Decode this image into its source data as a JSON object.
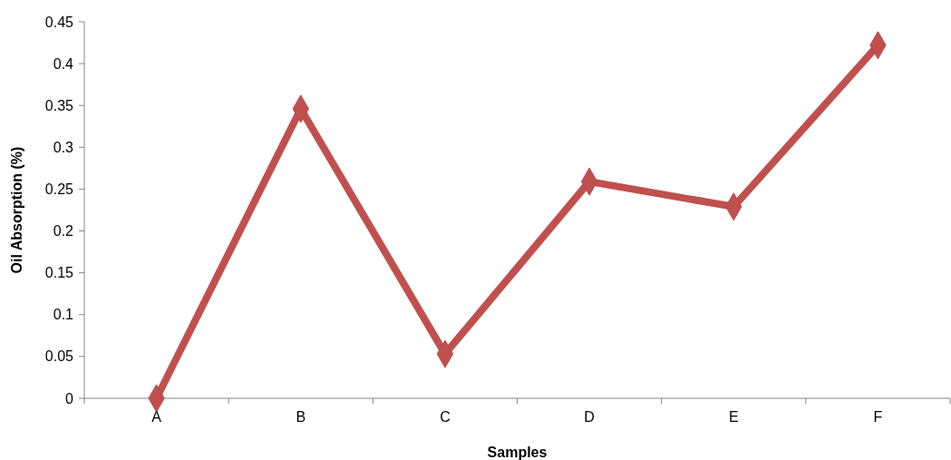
{
  "chart_data": {
    "type": "line",
    "xlabel": "Samples",
    "ylabel": "Oil Absorption (%)",
    "categories": [
      "A",
      "B",
      "C",
      "D",
      "E",
      "F"
    ],
    "series": [
      {
        "color": "#c0504d",
        "values": [
          0,
          0.346,
          0.053,
          0.259,
          0.229,
          0.422
        ]
      }
    ],
    "ylim": [
      0,
      0.45
    ],
    "yticks": [
      0,
      0.05,
      0.1,
      0.15,
      0.2,
      0.25,
      0.3,
      0.35,
      0.4,
      0.45
    ],
    "marker": "diamond",
    "line_style": "solid",
    "grid": false
  }
}
